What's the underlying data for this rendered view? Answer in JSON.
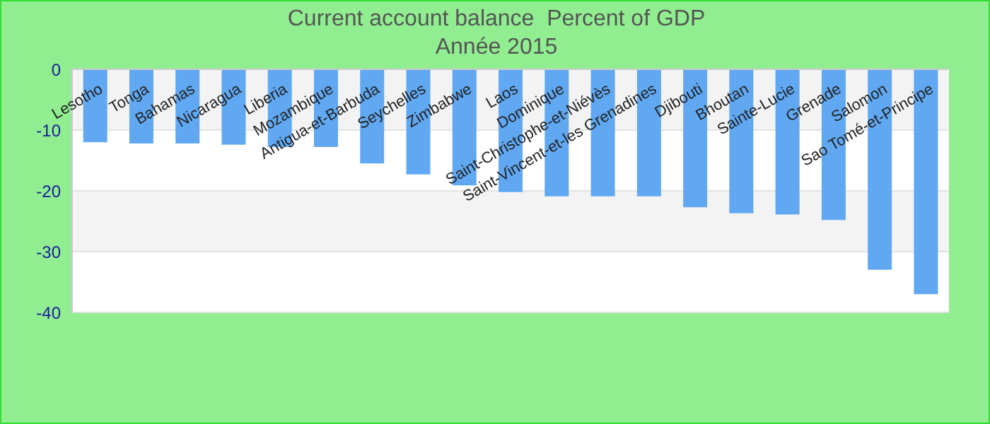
{
  "chart_data": {
    "type": "bar",
    "title": "Current account balance  Percent of GDP",
    "subtitle": "Année 2015",
    "categories": [
      "Lesotho",
      "Tonga",
      "Bahamas",
      "Nicaragua",
      "Liberia",
      "Mozambique",
      "Antigua-et-Barbuda",
      "Seychelles",
      "Zimbabwe",
      "Laos",
      "Dominique",
      "Saint-Christophe-et-Niévès",
      "Saint-Vincent-et-les Grenadines",
      "Djibouti",
      "Bhoutan",
      "Sainte-Lucie",
      "Grenade",
      "Salomon",
      "Sao Tomé-et-Principe"
    ],
    "values": [
      -12,
      -12.2,
      -12.2,
      -12.4,
      -12.8,
      -12.8,
      -15.5,
      -17.3,
      -19.1,
      -20.2,
      -20.9,
      -20.9,
      -20.9,
      -22.7,
      -23.7,
      -23.9,
      -24.8,
      -33,
      -37
    ],
    "color": "#60a8f2",
    "ylim": [
      -40,
      0
    ],
    "yticks": [
      0,
      -10,
      -20,
      -30,
      -40
    ],
    "grid": "y"
  }
}
